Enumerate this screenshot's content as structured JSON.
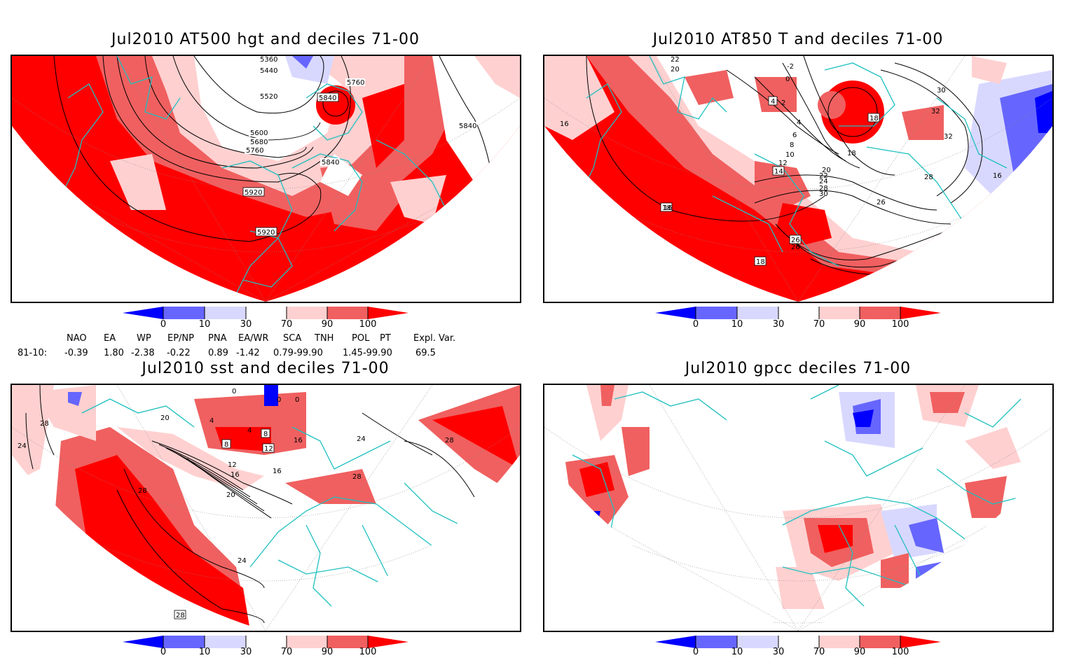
{
  "panels": [
    {
      "title": "Jul2010 AT500 hgt and deciles 71-00",
      "contour_labels": [
        "5360",
        "5440",
        "5520",
        "5600",
        "5680",
        "5760",
        "5760",
        "5840",
        "5840",
        "5840",
        "5920",
        "5920"
      ]
    },
    {
      "title": "Jul2010 AT850 T and deciles 71-00",
      "contour_labels": [
        "22",
        "20",
        "-2",
        "0",
        "2",
        "4",
        "4",
        "6",
        "8",
        "10",
        "12",
        "14",
        "16",
        "18",
        "18",
        "18",
        "20",
        "22",
        "24",
        "26",
        "26",
        "26",
        "28",
        "28",
        "30",
        "30",
        "32",
        "32",
        "16",
        "16",
        "18"
      ]
    },
    {
      "title": "Jul2010 sst and deciles 71-00",
      "contour_labels": [
        "0",
        "0",
        "0",
        "4",
        "4",
        "8",
        "8",
        "12",
        "12",
        "16",
        "16",
        "16",
        "20",
        "20",
        "24",
        "24",
        "24",
        "28",
        "28",
        "28",
        "28",
        "28"
      ]
    },
    {
      "title": "Jul2010 gpcc deciles 71-00",
      "contour_labels": []
    }
  ],
  "colorbar": {
    "labels": [
      "0",
      "10",
      "30",
      "70",
      "90",
      "100"
    ],
    "colors": {
      "dark_blue": "#0000ff",
      "mid_blue": "#6666ff",
      "light_blue": "#d8d8ff",
      "white": "#ffffff",
      "light_red": "#ffd0d0",
      "mid_red": "#f06060",
      "dark_red": "#ff0000"
    }
  },
  "indices": {
    "headers": [
      "NAO",
      "EA",
      "WP",
      "EP/NP",
      "PNA",
      "EA/WR",
      "SCA",
      "TNH",
      "POL",
      "PT",
      "Expl. Var."
    ],
    "row_label": "81-10:",
    "values": [
      "-0.39",
      "1.80",
      "-2.38",
      "-0.22",
      "0.89",
      "-1.42",
      "0.79-99.90",
      "1.45-99.90",
      "69.5"
    ]
  },
  "map_colors": {
    "coast": "#20c0c0",
    "contour": "#000000",
    "grid": "#888888"
  }
}
